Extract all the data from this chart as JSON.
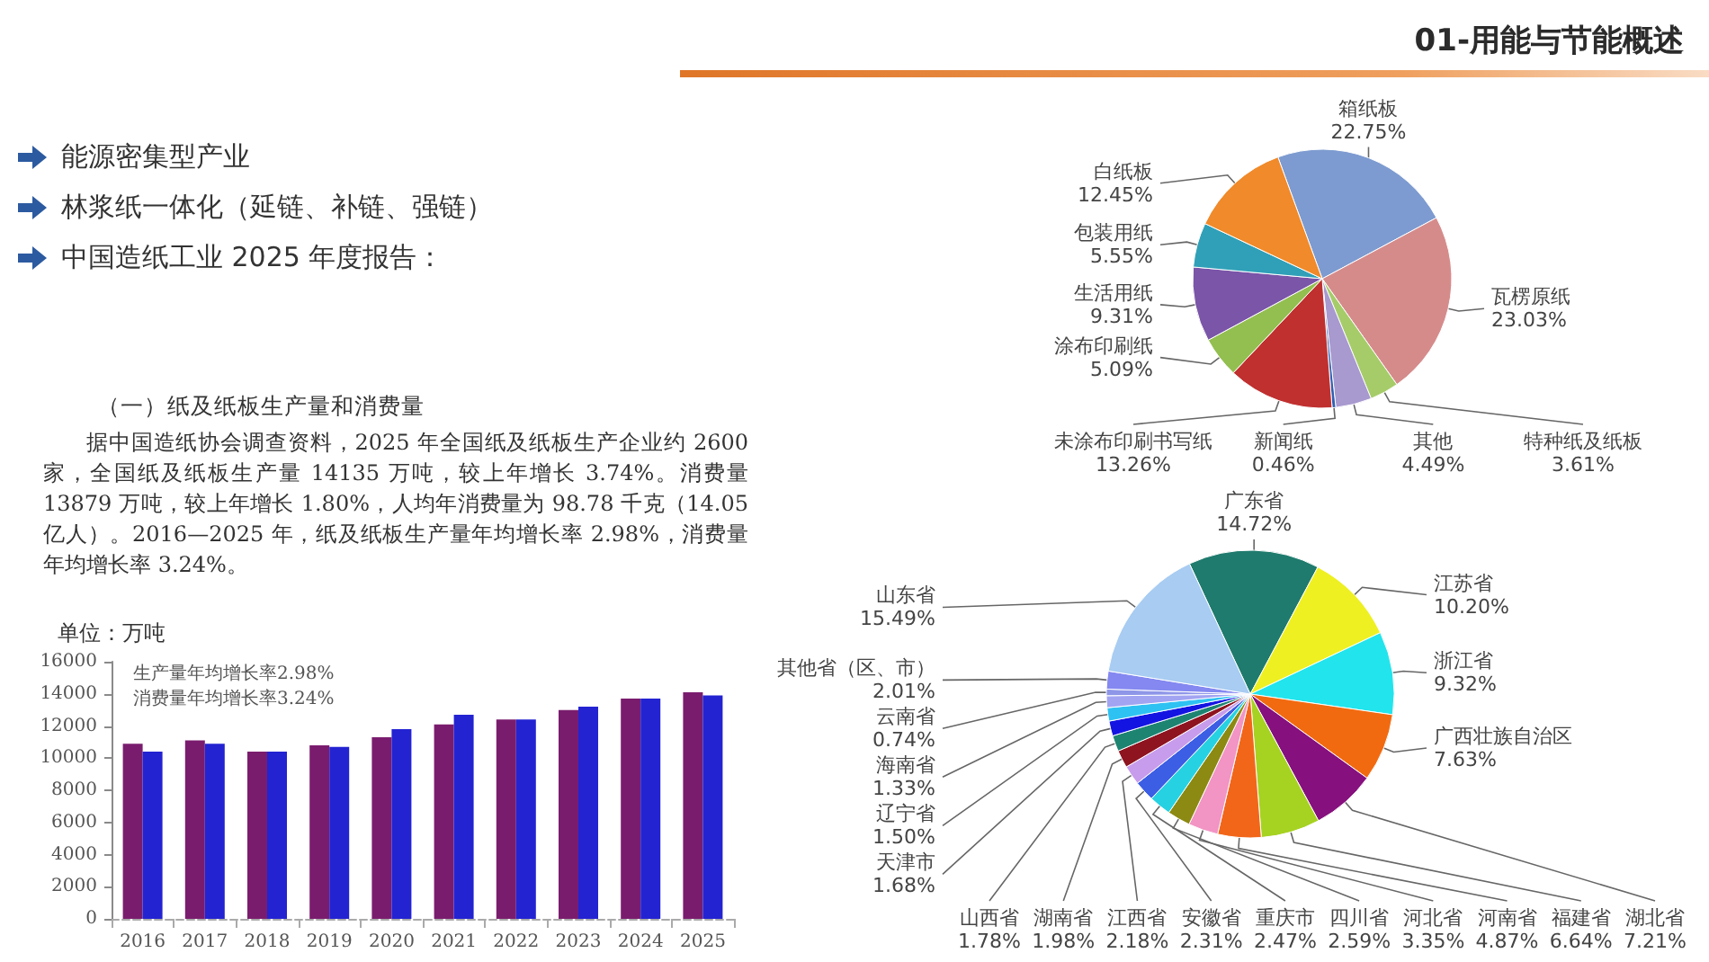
{
  "chart_data": [
    {
      "type": "other",
      "title": "01-用能与节能概述",
      "annotations": [
        "能源密集型产业",
        "林浆纸一体化（延链、补链、强链）",
        "中国造纸工业 2025 年度报告："
      ]
    },
    {
      "type": "other",
      "title": "（一）纸及纸板生产量和消费量",
      "annotations": [
        "据中国造纸协会调查资料，2025 年全国纸及纸板生产企业约 2600 家，全国纸及纸板生产量 14135 万吨，较上年增长 3.74%。消费量 13879 万吨，较上年增长 1.80%，人均年消费量为 98.78 千克（14.05 亿人）。2016—2025 年，纸及纸板生产量年均增长率 2.98%，消费量年均增长率 3.24%。"
      ]
    },
    {
      "type": "bar",
      "ylabel": "单位：万吨",
      "categories": [
        "2016",
        "2017",
        "2018",
        "2019",
        "2020",
        "2021",
        "2022",
        "2023",
        "2024",
        "2025"
      ],
      "series": [
        {
          "color": "#7a1c6e",
          "values": [
            10900,
            11100,
            10400,
            10800,
            11300,
            12100,
            12400,
            13000,
            13700,
            14100
          ]
        },
        {
          "color": "#2323d2",
          "values": [
            10400,
            10900,
            10400,
            10700,
            11800,
            12700,
            12400,
            13200,
            13700,
            13900
          ]
        }
      ],
      "ylim": [
        0,
        16000
      ],
      "yticks": [
        0,
        2000,
        4000,
        6000,
        8000,
        10000,
        12000,
        14000,
        16000
      ],
      "annotations": [
        "生产量年均增长率2.98%",
        "消费量年均增长率3.24%"
      ]
    },
    {
      "type": "pie",
      "categories": [
        "箱纸板",
        "瓦楞原纸",
        "特种纸及纸板",
        "其他",
        "新闻纸",
        "未涂布印刷书写纸",
        "涂布印刷纸",
        "生活用纸",
        "包装用纸",
        "白纸板"
      ],
      "values": [
        22.75,
        23.03,
        3.61,
        4.49,
        0.46,
        13.26,
        5.09,
        9.31,
        5.55,
        12.45
      ],
      "value_labels": [
        "22.75%",
        "23.03%",
        "3.61%",
        "4.49%",
        "0.46%",
        "13.26%",
        "5.09%",
        "9.31%",
        "5.55%",
        "12.45%"
      ],
      "colors": [
        "#7d9bd0",
        "#d68b8b",
        "#a6cc6a",
        "#a899cf",
        "#2f5fb3",
        "#c0302f",
        "#93bf50",
        "#7a55a8",
        "#30a0b8",
        "#f08a2a"
      ]
    },
    {
      "type": "pie",
      "categories": [
        "广东省",
        "江苏省",
        "浙江省",
        "广西壮族自治区",
        "湖北省",
        "福建省",
        "河南省",
        "河北省",
        "四川省",
        "重庆市",
        "安徽省",
        "江西省",
        "湖南省",
        "山西省",
        "天津市",
        "辽宁省",
        "海南省",
        "云南省",
        "其他省（区、市）",
        "山东省"
      ],
      "values": [
        14.72,
        10.2,
        9.32,
        7.63,
        7.21,
        6.64,
        4.87,
        3.35,
        2.59,
        2.47,
        2.31,
        2.18,
        1.98,
        1.78,
        1.68,
        1.5,
        1.33,
        0.74,
        2.01,
        15.49
      ],
      "value_labels": [
        "14.72%",
        "10.20%",
        "9.32%",
        "7.63%",
        "7.21%",
        "6.64%",
        "4.87%",
        "3.35%",
        "2.59%",
        "2.47%",
        "2.31%",
        "2.18%",
        "1.98%",
        "1.78%",
        "1.68%",
        "1.50%",
        "1.33%",
        "0.74%",
        "2.01%",
        "15.49%"
      ],
      "colors": [
        "#1f7b6d",
        "#eef022",
        "#22e4ec",
        "#f26a10",
        "#86107e",
        "#a6d222",
        "#f2661a",
        "#f294c4",
        "#8c8a12",
        "#26d2e2",
        "#3c5ee4",
        "#c89cec",
        "#8e1420",
        "#1e8472",
        "#1414e2",
        "#2ec2f2",
        "#a2a4f2",
        "#8e96e8",
        "#8488f0",
        "#a8ccf2"
      ]
    }
  ]
}
